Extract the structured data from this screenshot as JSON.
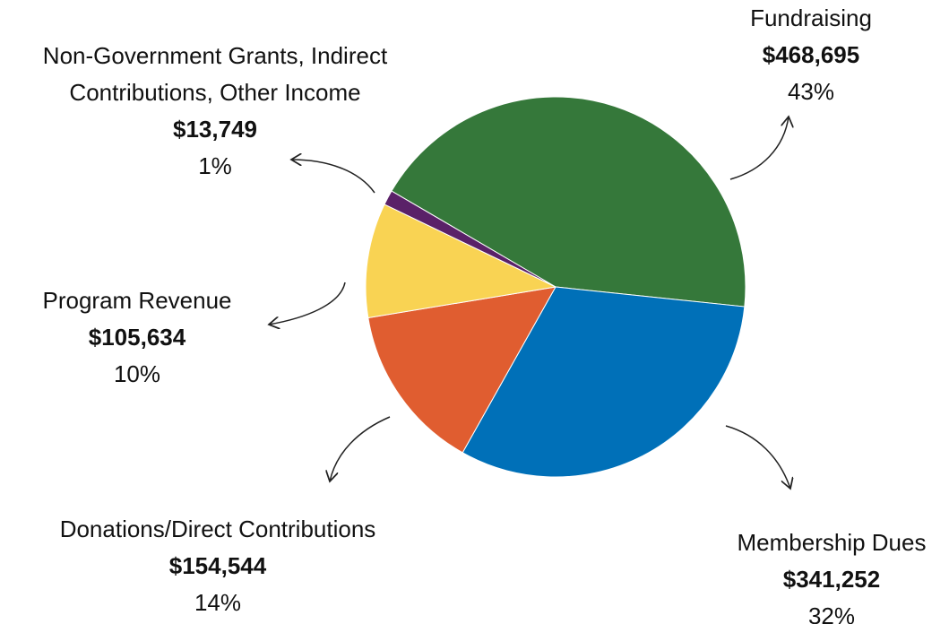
{
  "chart_data": {
    "type": "pie",
    "categories": [
      "Fundraising",
      "Membership Dues",
      "Donations/Direct Contributions",
      "Program Revenue",
      "Non-Government Grants, Indirect Contributions, Other Income"
    ],
    "values": [
      468695,
      341252,
      154544,
      105634,
      13749
    ],
    "value_labels": [
      "$468,695",
      "$341,252",
      "$154,544",
      "$105,634",
      "$13,749"
    ],
    "shares": [
      43,
      32,
      14,
      10,
      1
    ],
    "share_labels": [
      "43%",
      "32%",
      "14%",
      "10%",
      "1%"
    ],
    "colors": [
      "#35783a",
      "#0070b8",
      "#e05d30",
      "#f9d353",
      "#5a2168"
    ]
  }
}
